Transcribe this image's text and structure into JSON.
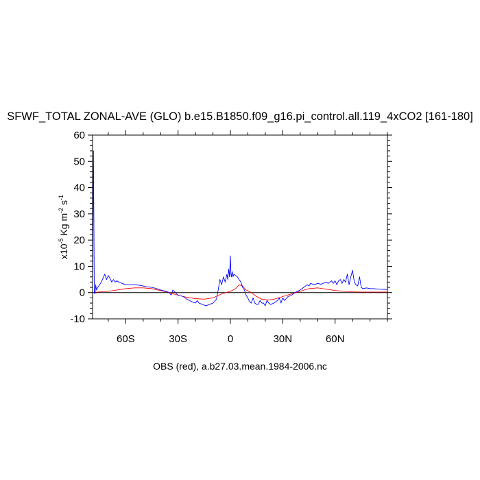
{
  "chart_data": {
    "type": "line",
    "title": "SFWF_TOTAL ZONAL-AVE (GLO) b.e15.B1850.f09_g16.pi_control.all.119_4xCO2 [161-180]",
    "xlabel": "OBS (red), a.b27.03.mean.1984-2006.nc",
    "ylabel": {
      "prefix": "x10",
      "exp1": "-5",
      "mid": " Kg m",
      "exp2": "-2",
      "mid2": " s",
      "exp3": "-1"
    },
    "xlim": [
      -79,
      90
    ],
    "ylim": [
      -10,
      60
    ],
    "y_ticks": [
      -10,
      0,
      10,
      20,
      30,
      40,
      50,
      60
    ],
    "y_tick_labels": [
      "-10",
      "0",
      "10",
      "20",
      "30",
      "40",
      "50",
      "60"
    ],
    "x_ticks": [
      -60,
      -30,
      0,
      30,
      60
    ],
    "x_tick_labels": [
      "60S",
      "30S",
      "0",
      "30N",
      "60N"
    ],
    "x_minor_step": 10,
    "y_minor_step": 2,
    "zero_line": true,
    "series": [
      {
        "name": "OBS",
        "color": "#ff0000",
        "x": [
          -79,
          -76,
          -70,
          -65,
          -60,
          -55,
          -50,
          -45,
          -40,
          -35,
          -30,
          -25,
          -20,
          -15,
          -10,
          -5,
          0,
          3,
          5,
          7,
          9,
          12,
          15,
          18,
          22,
          25,
          30,
          35,
          40,
          45,
          50,
          55,
          60,
          65,
          70,
          75,
          80,
          85,
          90
        ],
        "y": [
          0.0,
          0.2,
          0.5,
          1.0,
          1.5,
          1.8,
          1.8,
          1.5,
          0.8,
          0.0,
          -1.0,
          -1.8,
          -2.3,
          -2.5,
          -2.0,
          -0.5,
          0.5,
          1.5,
          3.0,
          2.5,
          1.0,
          0.0,
          -1.5,
          -2.5,
          -2.8,
          -2.5,
          -1.5,
          -0.5,
          0.5,
          1.5,
          1.8,
          1.3,
          0.8,
          0.5,
          0.3,
          0.2,
          0.2,
          0.2,
          0.2
        ]
      },
      {
        "name": "",
        "color": "#0000ff",
        "x": [
          -79,
          -78.5,
          -78,
          -77.6,
          -77.2,
          -76.8,
          -76,
          -75,
          -74,
          -73,
          -72,
          -71,
          -70,
          -69,
          -68,
          -67,
          -66,
          -65,
          -64,
          -62,
          -60,
          -58,
          -55,
          -52,
          -50,
          -48,
          -45,
          -42,
          -40,
          -37,
          -35,
          -34,
          -33,
          -30,
          -27,
          -25,
          -22,
          -20,
          -19,
          -18,
          -16,
          -14,
          -12,
          -10,
          -8,
          -7,
          -6,
          -5,
          -4,
          -3,
          -2,
          -1.5,
          -1,
          -0.5,
          0,
          0.3,
          0.6,
          1,
          1.5,
          2,
          3,
          4,
          5,
          6,
          7,
          8,
          9,
          10,
          11,
          12,
          13,
          14,
          15,
          16,
          17,
          18,
          19,
          20,
          21,
          22,
          23,
          25,
          27,
          28,
          29,
          30,
          31,
          33,
          35,
          37,
          40,
          42,
          44,
          45,
          46,
          48,
          50,
          52,
          54,
          55,
          56,
          58,
          59,
          60,
          61,
          62,
          63,
          64,
          65,
          66,
          67,
          68,
          69,
          70,
          71,
          72,
          73,
          74,
          75,
          76,
          78,
          80,
          82,
          85,
          88,
          90
        ],
        "y": [
          2,
          54,
          0,
          -0.5,
          3,
          1,
          2,
          3,
          4,
          5.5,
          7,
          5,
          6.5,
          5.5,
          4,
          5,
          4,
          4.5,
          4,
          3.5,
          3,
          3,
          3,
          2.8,
          2.5,
          2.2,
          2,
          1.5,
          1,
          0.5,
          0,
          -1,
          1,
          -1,
          -1.5,
          -2.5,
          -3.5,
          -4,
          -3,
          -4,
          -4.5,
          -5,
          -4.5,
          -4,
          -2.5,
          1,
          5,
          3,
          6,
          4,
          7,
          5,
          9,
          6,
          14,
          7,
          6,
          8,
          6,
          7,
          6.5,
          6,
          5,
          4,
          2,
          1,
          -1,
          -2,
          -3.5,
          -4,
          -2,
          -4,
          -4.5,
          -4.5,
          -3,
          -4,
          -4,
          -5,
          -3,
          -4,
          -4.5,
          -4,
          -3,
          -2,
          -4,
          -2,
          -3,
          -1.5,
          -1,
          0,
          1,
          2,
          3,
          2.5,
          3.5,
          3,
          3.5,
          3.2,
          3.8,
          4,
          3.5,
          4.5,
          3.5,
          4.5,
          3,
          4.5,
          5,
          3.5,
          5,
          4,
          7,
          3,
          6,
          8.5,
          4,
          3,
          2.5,
          6,
          2,
          1.5,
          1.8,
          1.5,
          1.5,
          1.3,
          1.2,
          1.2
        ]
      }
    ]
  }
}
